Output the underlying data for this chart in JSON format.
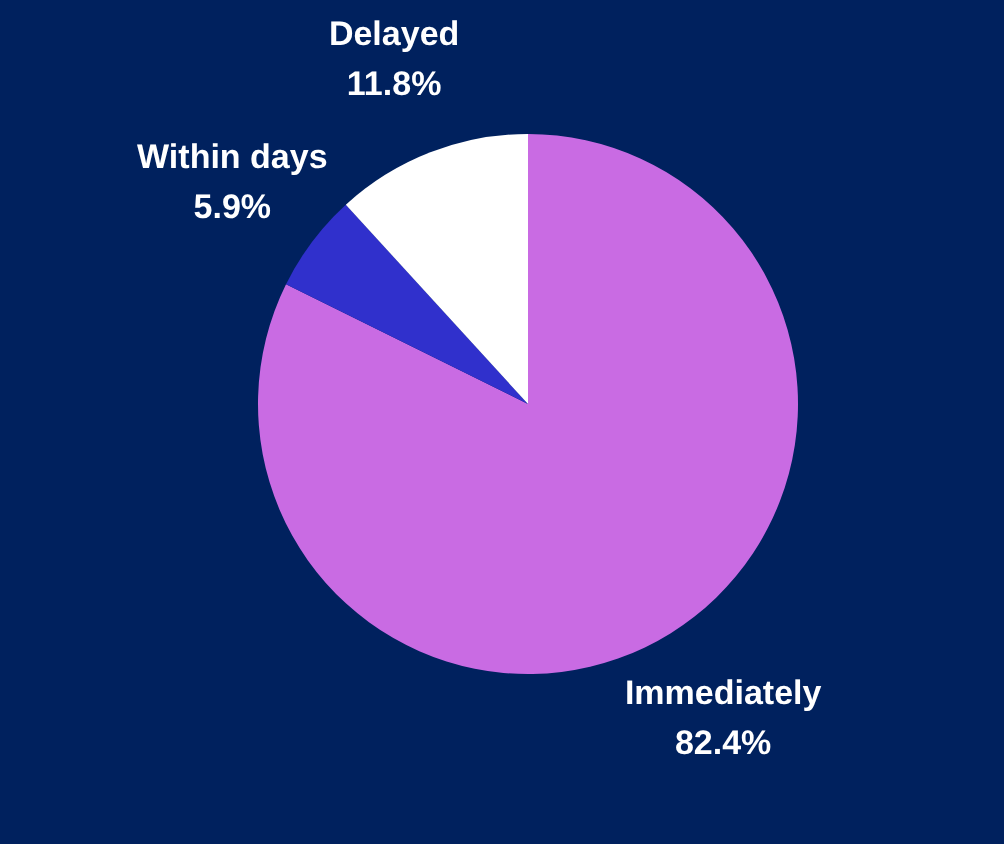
{
  "chart_data": {
    "type": "pie",
    "categories": [
      "Immediately",
      "Within days",
      "Delayed"
    ],
    "values": [
      82.4,
      5.9,
      11.8
    ],
    "value_labels": [
      "82.4%",
      "5.9%",
      "11.8%"
    ],
    "colors": [
      "#c96be3",
      "#3030cc",
      "#ffffff"
    ]
  }
}
